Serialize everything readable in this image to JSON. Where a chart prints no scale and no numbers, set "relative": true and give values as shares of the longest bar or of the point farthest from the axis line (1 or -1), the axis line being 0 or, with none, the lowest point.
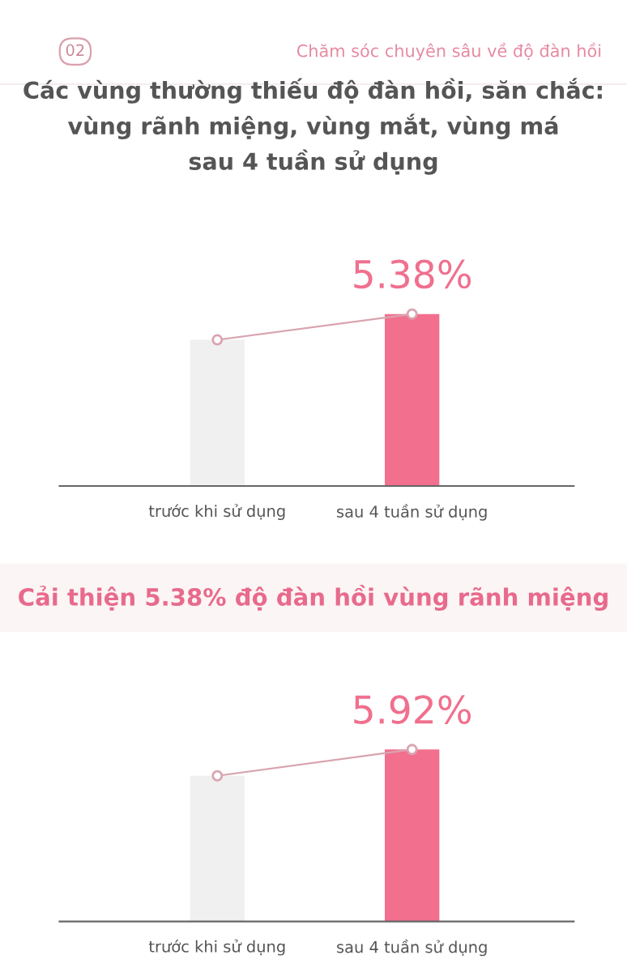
{
  "chart_data": [
    {
      "type": "bar",
      "title": "Các vùng thường thiếu độ đàn hồi, săn chắc:\nvùng rãnh miệng, vùng mắt, vùng má\nsau 4 tuần sử dụng",
      "annotations": [
        "02",
        "Chăm sóc chuyên sâu về độ đàn hồi",
        {
          "text": "5.38%",
          "x": "sau 4 tuần sử dụng",
          "y": 1
        }
      ],
      "categories": [
        "trước khi sử dụng",
        "sau 4 tuần sử dụng"
      ],
      "relative": true,
      "series": [
        {
          "colors": [
            "#f0f0f0",
            "#f26f8e"
          ],
          "values": [
            0.85,
            1
          ]
        },
        {
          "type": "line",
          "color": "#d8a4b0",
          "values": [
            0.85,
            1
          ]
        }
      ],
      "marker": "circle"
    },
    {
      "type": "bar",
      "title": "Cải thiện 5.38% độ đàn hồi vùng rãnh miệng",
      "annotations": [
        {
          "text": "5.92%",
          "x": "sau 4 tuần sử dụng",
          "y": 1
        }
      ],
      "categories": [
        "trước khi sử dụng",
        "sau 4 tuần sử dụng"
      ],
      "relative": true,
      "series": [
        {
          "colors": [
            "#f0f0f0",
            "#f26f8e"
          ],
          "values": [
            0.847,
            1
          ]
        },
        {
          "type": "line",
          "color": "#d8a4b0",
          "values": [
            0.847,
            1
          ]
        }
      ],
      "marker": "circle"
    }
  ]
}
